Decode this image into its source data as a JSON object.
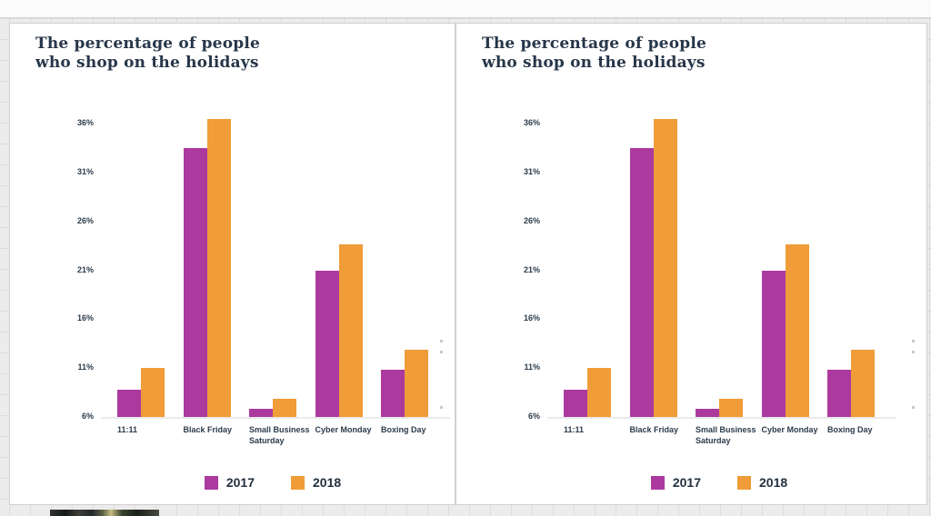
{
  "canvas": {
    "background_color": "#ececec",
    "card_background": "#ffffff",
    "title_color": "#273649",
    "axis_text_color": "#2b3b4b",
    "axis_line_color": "#ebebeb"
  },
  "chart_data": [
    {
      "type": "bar",
      "title": "The percentage of people\nwho shop on the holidays",
      "categories": [
        "11:11",
        "Black Friday",
        "Small Business Saturday",
        "Cyber Monday",
        "Boxing Day"
      ],
      "series": [
        {
          "name": "2017",
          "color": "#AC3A9E",
          "values": [
            8.8,
            33.5,
            6.8,
            21,
            10.8
          ]
        },
        {
          "name": "2018",
          "color": "#F09C38",
          "values": [
            11,
            36.5,
            7.9,
            23.7,
            12.9
          ]
        }
      ],
      "yticks": [
        6,
        11,
        16,
        21,
        26,
        31,
        36
      ],
      "ytick_suffix": "%",
      "ylim": [
        6,
        39
      ],
      "xlabel": "",
      "ylabel": "",
      "grid": false,
      "legend_position": "bottom"
    },
    {
      "type": "bar",
      "title": "The percentage of people\nwho shop on the holidays",
      "categories": [
        "11:11",
        "Black Friday",
        "Small Business Saturday",
        "Cyber Monday",
        "Boxing Day"
      ],
      "series": [
        {
          "name": "2017",
          "color": "#AC3A9E",
          "values": [
            8.8,
            33.5,
            6.8,
            21,
            10.8
          ]
        },
        {
          "name": "2018",
          "color": "#F09C38",
          "values": [
            11,
            36.5,
            7.9,
            23.7,
            12.9
          ]
        }
      ],
      "yticks": [
        6,
        11,
        16,
        21,
        26,
        31,
        36
      ],
      "ytick_suffix": "%",
      "ylim": [
        6,
        39
      ],
      "xlabel": "",
      "ylabel": "",
      "grid": false,
      "legend_position": "bottom"
    }
  ]
}
